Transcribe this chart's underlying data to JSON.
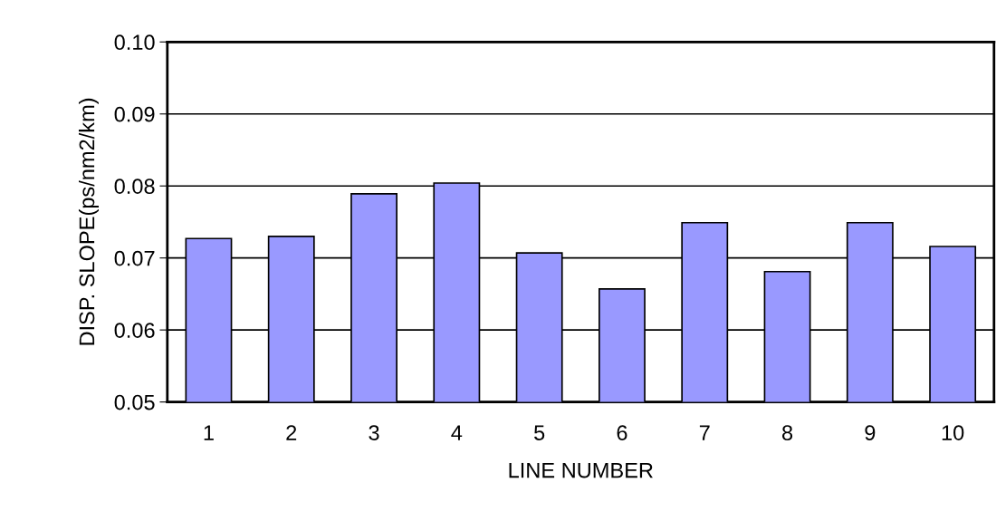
{
  "chart_data": {
    "type": "bar",
    "xlabel": "LINE NUMBER",
    "ylabel": "DISP. SLOPE(ps/nm2/km)",
    "categories": [
      "1",
      "2",
      "3",
      "4",
      "5",
      "6",
      "7",
      "8",
      "9",
      "10"
    ],
    "values": [
      0.0727,
      0.073,
      0.0789,
      0.0804,
      0.0707,
      0.0657,
      0.0749,
      0.0681,
      0.0749,
      0.0716
    ],
    "color": "#9999ff",
    "ylim": [
      0.05,
      0.1
    ],
    "yticks": [
      {
        "value": 0.05,
        "label": "0.05"
      },
      {
        "value": 0.06,
        "label": "0.06"
      },
      {
        "value": 0.07,
        "label": "0.07"
      },
      {
        "value": 0.08,
        "label": "0.08"
      },
      {
        "value": 0.09,
        "label": "0.09"
      },
      {
        "value": 0.1,
        "label": "0.10"
      }
    ],
    "grid": "y"
  }
}
